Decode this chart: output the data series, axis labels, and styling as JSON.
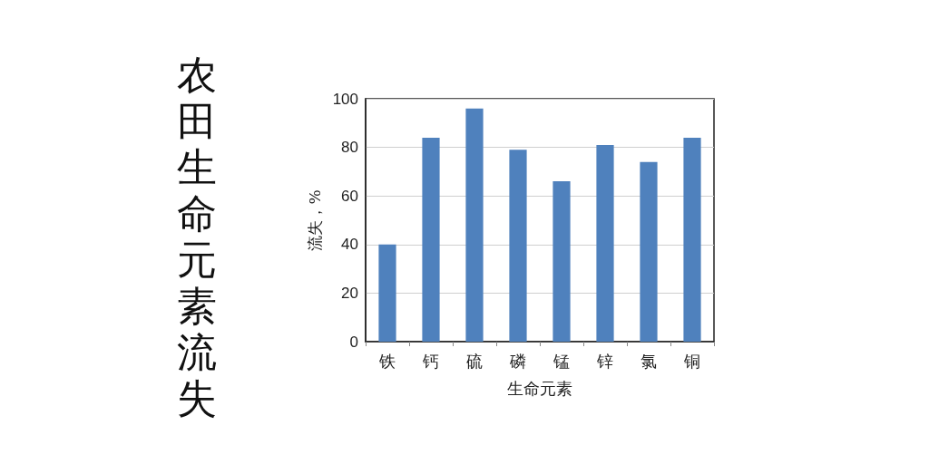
{
  "chart_data": {
    "type": "bar",
    "title": "农田生命元素流失",
    "xlabel": "生命元素",
    "ylabel": "流失，%",
    "categories": [
      "铁",
      "钙",
      "硫",
      "磷",
      "锰",
      "锌",
      "氯",
      "铜"
    ],
    "values": [
      40,
      84,
      96,
      79,
      66,
      81,
      74,
      84
    ],
    "color": "#4f81bd",
    "ylim": [
      0,
      100
    ],
    "yticks": [
      0,
      20,
      40,
      60,
      80,
      100
    ],
    "grid": "y"
  }
}
